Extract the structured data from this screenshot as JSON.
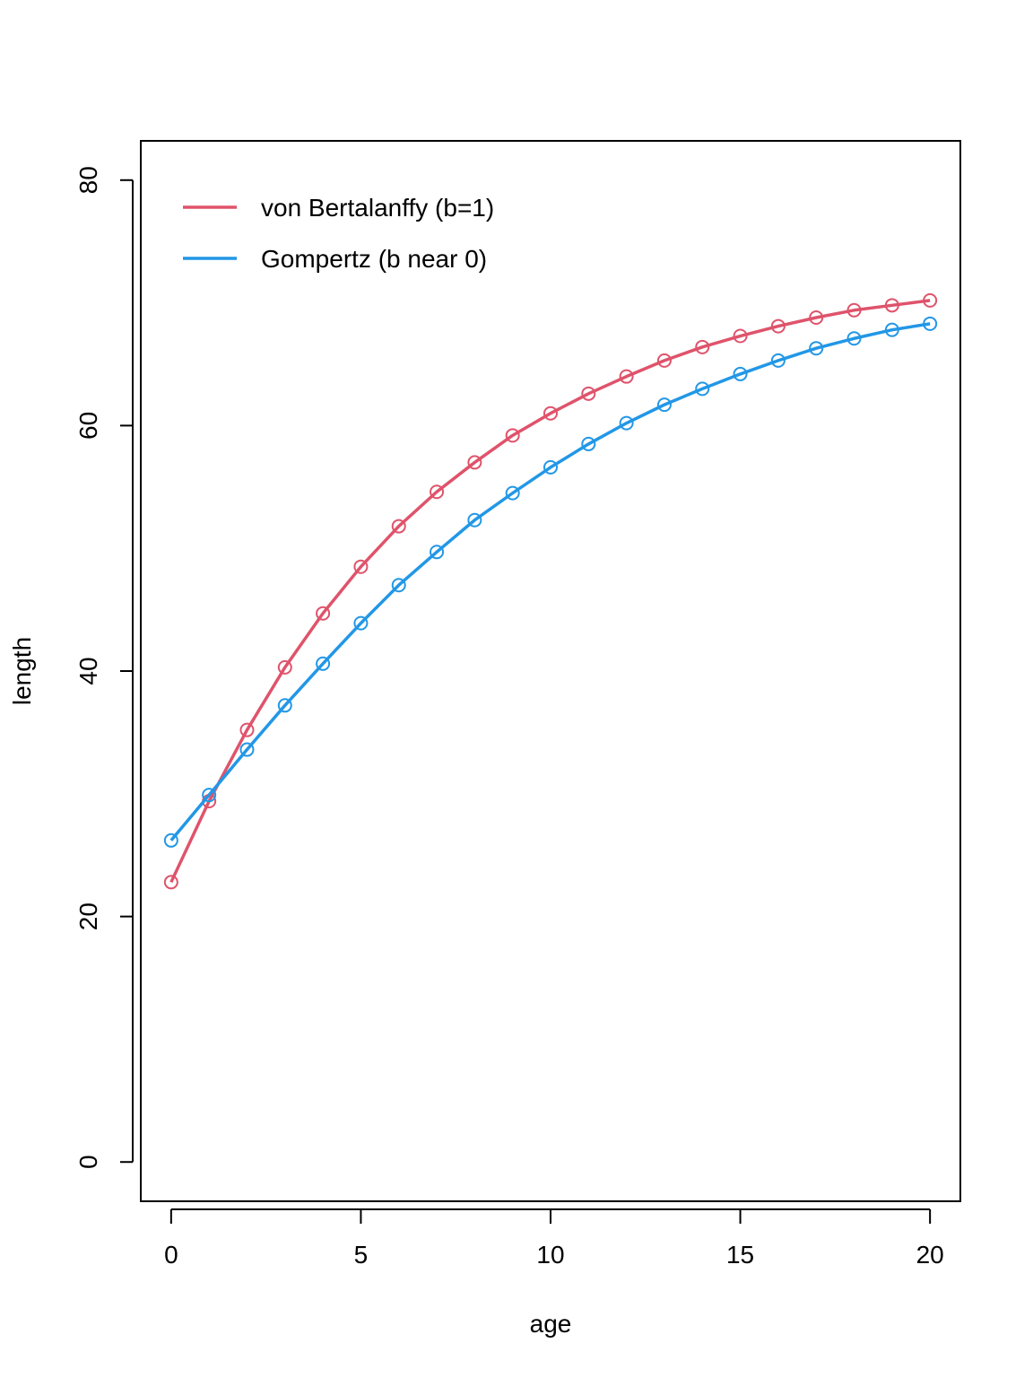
{
  "chart_data": {
    "type": "line",
    "title": "",
    "xlabel": "age",
    "ylabel": "length",
    "xlim": [
      -0.8,
      20.8
    ],
    "ylim": [
      -3.2,
      83.2
    ],
    "x_ticks": [
      0,
      5,
      10,
      15,
      20
    ],
    "y_ticks": [
      0,
      20,
      40,
      60,
      80
    ],
    "grid": false,
    "legend_position": "top-left",
    "markers": "open-circle",
    "x": [
      0,
      1,
      2,
      3,
      4,
      5,
      6,
      7,
      8,
      9,
      10,
      11,
      12,
      13,
      14,
      15,
      16,
      17,
      18,
      19,
      20
    ],
    "series": [
      {
        "name": "von Bertalanffy (b=1)",
        "color": "#DF536B",
        "values": [
          22.8,
          29.4,
          35.2,
          40.3,
          44.7,
          48.5,
          51.8,
          54.6,
          57.0,
          59.2,
          61.0,
          62.6,
          64.0,
          65.3,
          66.4,
          67.3,
          68.1,
          68.8,
          69.4,
          69.8,
          70.2
        ]
      },
      {
        "name": "Gompertz (b near 0)",
        "color": "#2297E6",
        "values": [
          26.2,
          29.9,
          33.6,
          37.2,
          40.6,
          43.9,
          47.0,
          49.7,
          52.3,
          54.5,
          56.6,
          58.5,
          60.2,
          61.7,
          63.0,
          64.2,
          65.3,
          66.3,
          67.1,
          67.8,
          68.3
        ]
      }
    ]
  }
}
